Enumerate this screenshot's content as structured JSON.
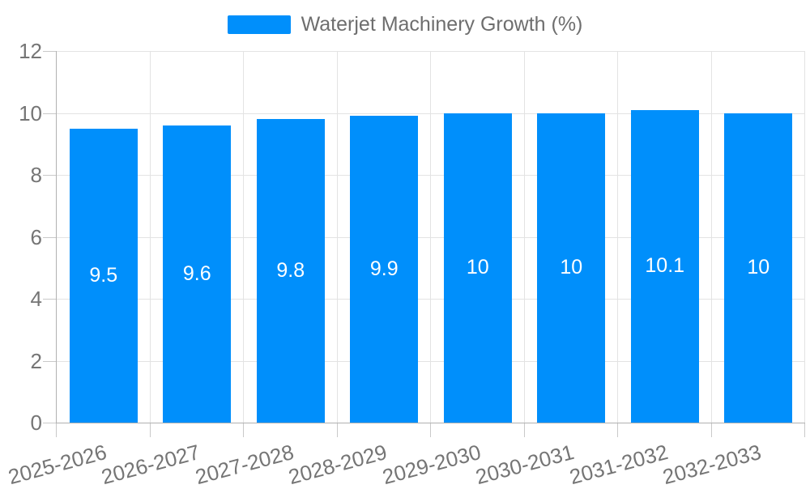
{
  "legend": {
    "label": "Waterjet Machinery Growth (%)"
  },
  "colors": {
    "bar": "#008FFB",
    "value_label": "#ffffff",
    "axis_label": "#757575",
    "legend_text": "#6e6e6e",
    "grid": "#e3e3e3",
    "axis_line": "#b1b1b1",
    "tick": "#c9c9c9",
    "background": "#ffffff"
  },
  "chart_data": {
    "type": "bar",
    "title": "Waterjet Machinery Growth (%)",
    "series": [
      {
        "name": "Waterjet Machinery Growth (%)",
        "values": [
          9.5,
          9.6,
          9.8,
          9.9,
          10,
          10,
          10.1,
          10
        ]
      }
    ],
    "categories": [
      "2025-2026",
      "2026-2027",
      "2027-2028",
      "2028-2029",
      "2029-2030",
      "2030-2031",
      "2031-2032",
      "2032-2033"
    ],
    "value_labels": [
      "9.5",
      "9.6",
      "9.8",
      "9.9",
      "10",
      "10",
      "10.1",
      "10"
    ],
    "xlabel": "",
    "ylabel": "",
    "ylim": [
      0,
      12
    ],
    "yticks": [
      0,
      2,
      4,
      6,
      8,
      10,
      12
    ],
    "ytick_labels": [
      "0",
      "2",
      "4",
      "6",
      "8",
      "10",
      "12"
    ],
    "grid": true,
    "legend_position": "top",
    "x_label_rotation_deg": -15
  }
}
